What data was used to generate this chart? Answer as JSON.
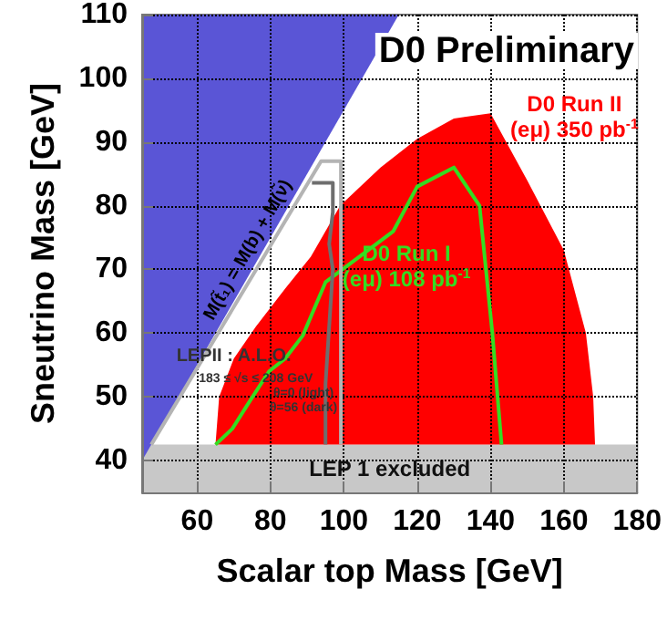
{
  "chart_data": {
    "type": "area",
    "title": "D0 Preliminary",
    "xlabel": "Scalar top Mass [GeV]",
    "ylabel": "Sneutrino Mass [GeV]",
    "xlim": [
      45,
      180
    ],
    "xticks": [
      60,
      80,
      100,
      120,
      140,
      160,
      180
    ],
    "ylim": [
      35,
      110
    ],
    "yticks": [
      40,
      50,
      60,
      70,
      80,
      90,
      100,
      110
    ],
    "grid": true,
    "series": [
      {
        "color": "#5a55d6",
        "x": [
          45,
          115
        ],
        "values": [
          40,
          110
        ]
      },
      {
        "name": "D0 Run II\n(eμ) 350 pb$^{-1}$",
        "color": "#ff0000",
        "x": [
          65,
          66,
          70,
          76,
          84,
          91,
          99,
          110,
          120,
          130,
          140,
          150,
          160,
          166,
          168,
          168.5
        ],
        "values": [
          42.5,
          50,
          56,
          61,
          67,
          72,
          80,
          86,
          90.5,
          93.7,
          94.5,
          84,
          73,
          60,
          50,
          42.5
        ]
      },
      {
        "type": "line",
        "name": "D0 Run I\n(eμ) 108 pb$^{-1}$",
        "color": "#33dd22",
        "x": [
          65,
          69.6,
          74,
          79.6,
          84,
          88.8,
          95,
          113.5,
          120,
          130,
          137,
          140.5,
          143
        ],
        "values": [
          42.5,
          45,
          49,
          54,
          56,
          59.6,
          68,
          76,
          83,
          86,
          80,
          60,
          42.5
        ]
      },
      {
        "type": "line",
        "color": "#b4b4b4",
        "x": [
          47.5,
          93.8,
          99.2,
          99.2
        ],
        "values": [
          42.5,
          87,
          87,
          42.5
        ]
      },
      {
        "type": "line",
        "color": "#6e6e6e",
        "x": [
          91.3,
          97,
          97,
          96,
          97,
          95,
          95
        ],
        "values": [
          83.6,
          83.6,
          79,
          74,
          70,
          52,
          42.5
        ]
      }
    ],
    "bands": [
      {
        "axis": "y",
        "from": 35,
        "to": 42.5,
        "label": "LEP 1 excluded",
        "color": "#c8c8c8"
      }
    ],
    "annotations": [
      "M(t̃₁) = M(b) + M(ν̃)",
      "LEPII : A.L.O.",
      "183 ≤ √s ≤ 208 GeV",
      "θ=0 (light)",
      "θ=56 (dark)"
    ]
  }
}
